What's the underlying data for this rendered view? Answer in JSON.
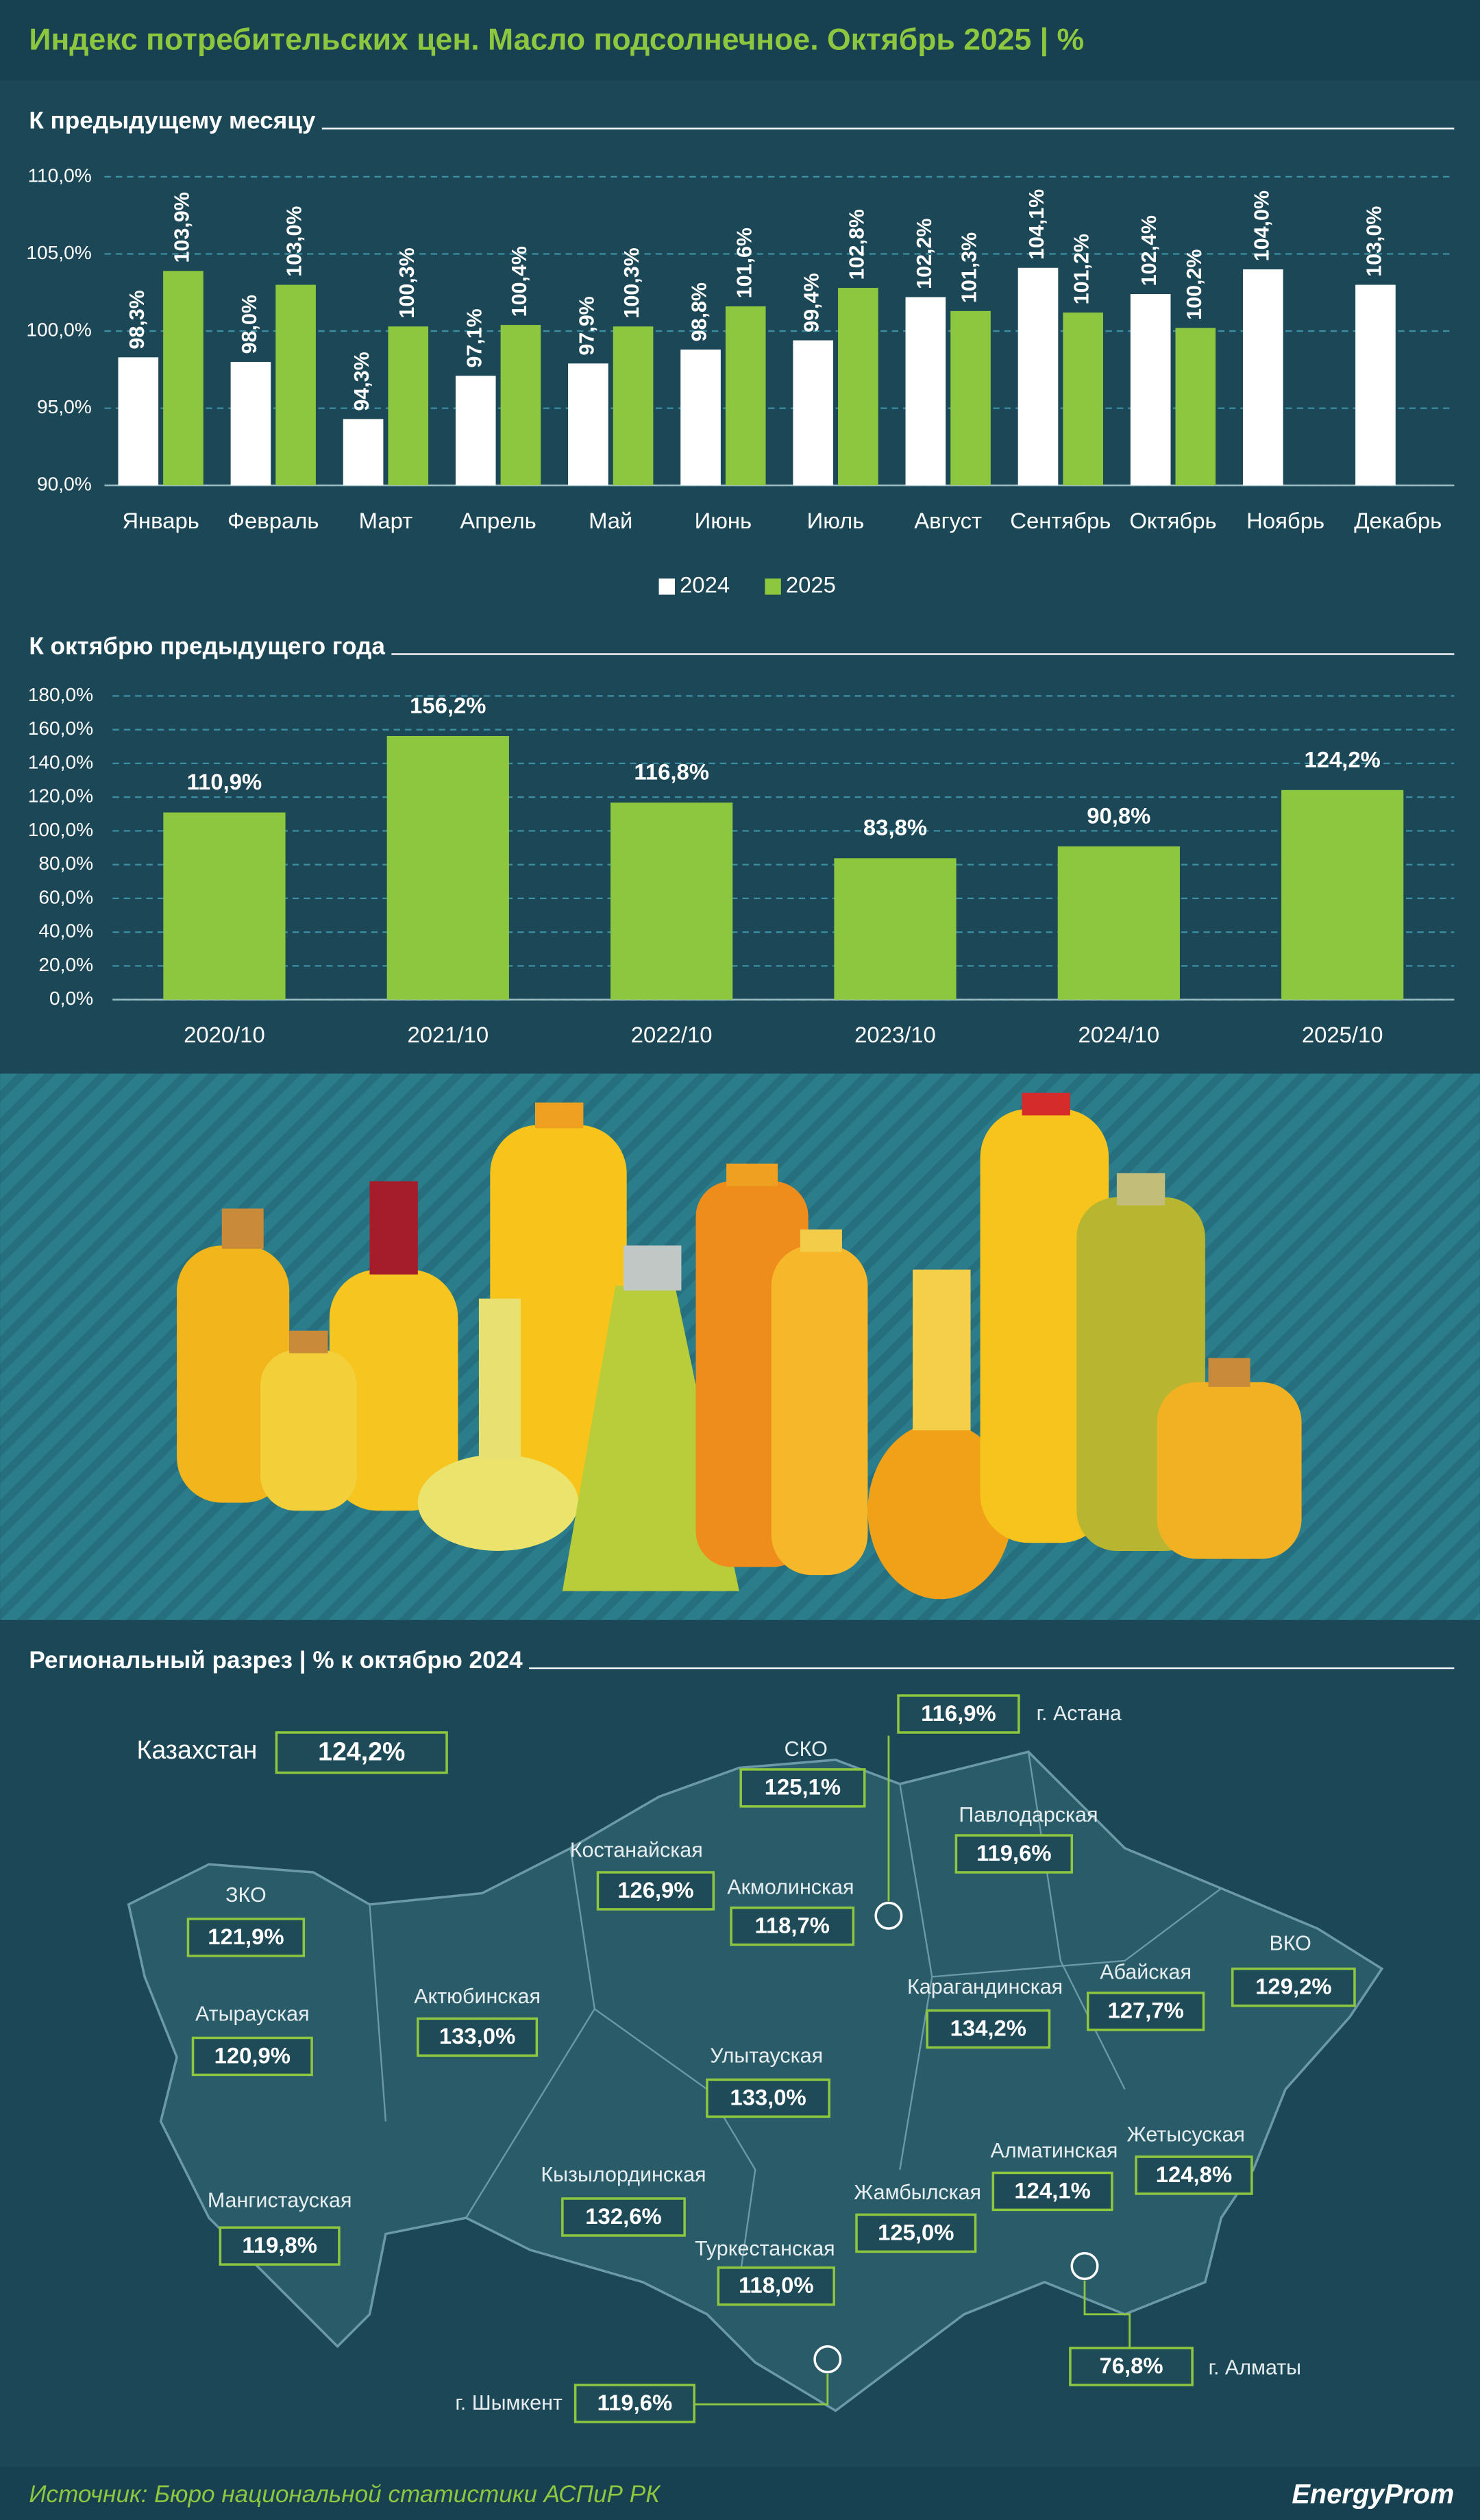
{
  "title": "Индекс потребительских цен. Масло подсолнечное. Октябрь 2025 | %",
  "chart_data": [
    {
      "type": "bar",
      "title": "К предыдущему месяцу",
      "categories": [
        "Январь",
        "Февраль",
        "Март",
        "Апрель",
        "Май",
        "Июнь",
        "Июль",
        "Август",
        "Сентябрь",
        "Октябрь",
        "Ноябрь",
        "Декабрь"
      ],
      "series": [
        {
          "name": "2024",
          "color": "#ffffff",
          "values": [
            98.3,
            98.0,
            94.3,
            97.1,
            97.9,
            98.8,
            99.4,
            102.2,
            104.1,
            102.4,
            104.0,
            103.0
          ],
          "value_labels": [
            "98,3%",
            "98,0%",
            "94,3%",
            "97,1%",
            "97,9%",
            "98,8%",
            "99,4%",
            "102,2%",
            "104,1%",
            "102,4%",
            "104,0%",
            "103,0%"
          ]
        },
        {
          "name": "2025",
          "color": "#8dc63f",
          "values": [
            103.9,
            103.0,
            100.3,
            100.4,
            100.3,
            101.6,
            102.8,
            101.3,
            101.2,
            100.2,
            null,
            null
          ],
          "value_labels": [
            "103,9%",
            "103,0%",
            "100,3%",
            "100,4%",
            "100,3%",
            "101,6%",
            "102,8%",
            "101,3%",
            "101,2%",
            "100,2%",
            null,
            null
          ]
        }
      ],
      "ylim": [
        90,
        110
      ],
      "yticks": [
        {
          "value": 90,
          "label": "90,0%"
        },
        {
          "value": 95,
          "label": "95,0%"
        },
        {
          "value": 100,
          "label": "100,0%"
        },
        {
          "value": 105,
          "label": "105,0%"
        },
        {
          "value": 110,
          "label": "110,0%"
        }
      ],
      "grid": true,
      "legend": "bottom"
    },
    {
      "type": "bar",
      "title": "К октябрю предыдущего года",
      "categories": [
        "2020/10",
        "2021/10",
        "2022/10",
        "2023/10",
        "2024/10",
        "2025/10"
      ],
      "values": [
        110.9,
        156.2,
        116.8,
        83.8,
        90.8,
        124.2
      ],
      "value_labels": [
        "110,9%",
        "156,2%",
        "116,8%",
        "83,8%",
        "90,8%",
        "124,2%"
      ],
      "color": "#8dc63f",
      "ylim": [
        0,
        180
      ],
      "yticks": [
        {
          "value": 0,
          "label": "0,0%"
        },
        {
          "value": 20,
          "label": "20,0%"
        },
        {
          "value": 40,
          "label": "40,0%"
        },
        {
          "value": 60,
          "label": "60,0%"
        },
        {
          "value": 80,
          "label": "80,0%"
        },
        {
          "value": 100,
          "label": "100,0%"
        },
        {
          "value": 120,
          "label": "120,0%"
        },
        {
          "value": 140,
          "label": "140,0%"
        },
        {
          "value": 160,
          "label": "160,0%"
        },
        {
          "value": 180,
          "label": "180,0%"
        }
      ],
      "grid": true
    }
  ],
  "regional": {
    "title": "Региональный разрез | % к октябрю 2024",
    "items": [
      {
        "name": "Казахстан",
        "value": "124,2%"
      },
      {
        "name": "г. Астана",
        "value": "116,9%"
      },
      {
        "name": "СКО",
        "value": "125,1%"
      },
      {
        "name": "Павлодарская",
        "value": "119,6%"
      },
      {
        "name": "Костанайская",
        "value": "126,9%"
      },
      {
        "name": "Акмолинская",
        "value": "118,7%"
      },
      {
        "name": "ЗКО",
        "value": "121,9%"
      },
      {
        "name": "ВКО",
        "value": "129,2%"
      },
      {
        "name": "Абайская",
        "value": "127,7%"
      },
      {
        "name": "Карагандинская",
        "value": "134,2%"
      },
      {
        "name": "Актюбинская",
        "value": "133,0%"
      },
      {
        "name": "Атырауская",
        "value": "120,9%"
      },
      {
        "name": "Улытауская",
        "value": "133,0%"
      },
      {
        "name": "Алматинская",
        "value": "124,1%"
      },
      {
        "name": "Жетысуская",
        "value": "124,8%"
      },
      {
        "name": "Кызылординская",
        "value": "132,6%"
      },
      {
        "name": "Жамбылская",
        "value": "125,0%"
      },
      {
        "name": "Мангистауская",
        "value": "119,8%"
      },
      {
        "name": "Туркестанская",
        "value": "118,0%"
      },
      {
        "name": "г. Алматы",
        "value": "76,8%"
      },
      {
        "name": "г. Шымкент",
        "value": "119,6%"
      }
    ]
  },
  "source": "Источник: Бюро национальной статистики АСПиР РК",
  "brand": "EnergyProm"
}
